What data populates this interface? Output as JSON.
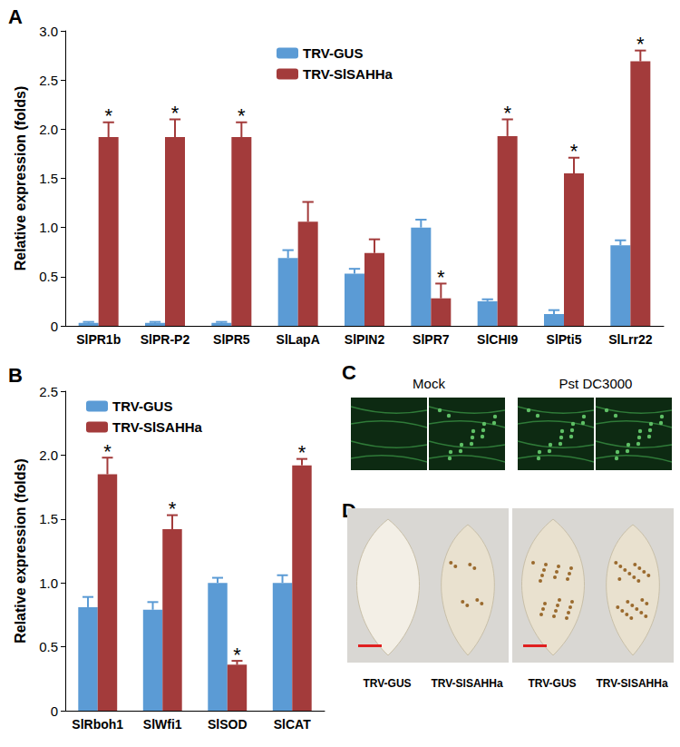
{
  "chart_data": [
    {
      "type": "bar",
      "title": "A",
      "ylabel": "Relative expression (folds)",
      "categories": [
        "SlPR1b",
        "SlPR-P2",
        "SlPR5",
        "SlLapA",
        "SlPIN2",
        "SlPR7",
        "SlCHI9",
        "SlPti5",
        "SlLrr22"
      ],
      "series": [
        {
          "name": "TRV-GUS",
          "color": "#5b9bd5",
          "values": [
            0.03,
            0.03,
            0.03,
            0.69,
            0.53,
            1.0,
            0.25,
            0.12,
            0.82
          ],
          "errors": [
            0.01,
            0.01,
            0.01,
            0.08,
            0.05,
            0.08,
            0.02,
            0.04,
            0.05
          ]
        },
        {
          "name": "TRV-SlSAHHa",
          "color": "#a33b3b",
          "values": [
            1.92,
            1.92,
            1.92,
            1.06,
            0.74,
            0.28,
            1.93,
            1.55,
            2.69
          ],
          "errors": [
            0.15,
            0.18,
            0.15,
            0.2,
            0.14,
            0.15,
            0.17,
            0.16,
            0.11
          ],
          "annotations": [
            "*",
            "*",
            "*",
            null,
            null,
            "*",
            "*",
            "*",
            "*"
          ]
        }
      ],
      "ylim": [
        0,
        3
      ],
      "yticks": [
        0,
        0.5,
        {
          "value": 1,
          "label": "1.0"
        },
        1.5,
        {
          "value": 2,
          "label": "2.0"
        },
        2.5,
        {
          "value": 3,
          "label": "3.0"
        }
      ],
      "legend": "top",
      "grid": false
    },
    {
      "type": "bar",
      "title": "B",
      "ylabel": "Relative expression (folds)",
      "categories": [
        "SlRboh1",
        "SlWfi1",
        "SlSOD",
        "SlCAT"
      ],
      "series": [
        {
          "name": "TRV-GUS",
          "color": "#5b9bd5",
          "values": [
            0.81,
            0.79,
            1.0,
            1.0
          ],
          "errors": [
            0.08,
            0.06,
            0.04,
            0.06
          ]
        },
        {
          "name": "TRV-SlSAHHa",
          "color": "#a33b3b",
          "values": [
            1.85,
            1.42,
            0.36,
            1.92
          ],
          "errors": [
            0.13,
            0.11,
            0.03,
            0.05
          ],
          "annotations": [
            "*",
            "*",
            "*",
            "*"
          ]
        }
      ],
      "ylim": [
        0,
        2.5
      ],
      "yticks": [
        0,
        0.5,
        {
          "value": 1,
          "label": "1.0"
        },
        1.5,
        {
          "value": 2,
          "label": "2.0"
        },
        2.5
      ],
      "legend": "upper left",
      "grid": false
    }
  ],
  "panel_c": {
    "label": "C",
    "captions": [
      "Mock",
      "Pst DC3000"
    ]
  },
  "panel_d": {
    "label": "D",
    "captions": [
      "TRV-GUS",
      "TRV-SlSAHHa",
      "TRV-GUS",
      "TRV-SlSAHHa"
    ]
  }
}
